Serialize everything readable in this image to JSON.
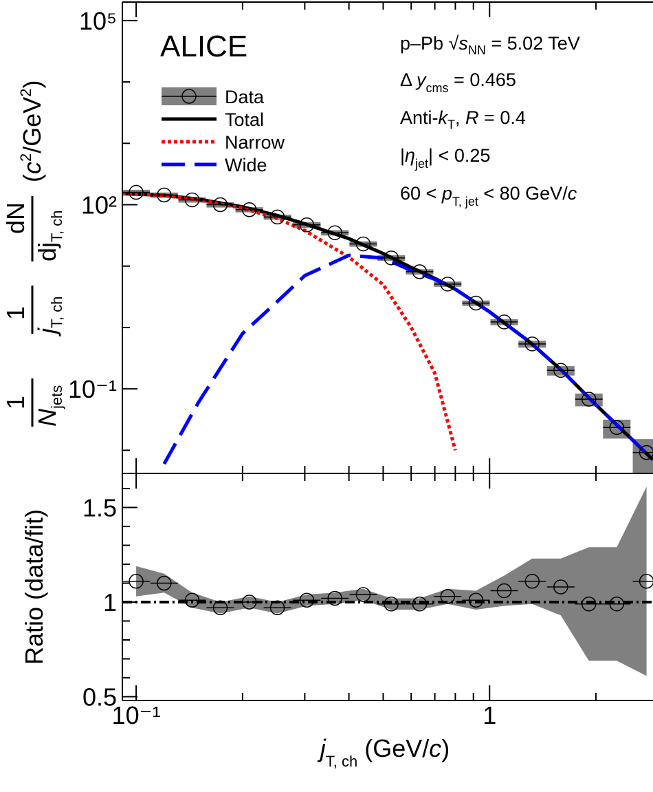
{
  "chart_data": [
    {
      "type": "scatter",
      "brand": "ALICE",
      "ylabel": [
        "1",
        "N",
        "jets",
        "1",
        "j",
        "T, ch",
        "dN",
        "dj",
        "T, ch",
        "(",
        "c",
        "2",
        "/GeV",
        "2",
        ")"
      ],
      "annotations": [
        [
          "p–Pb ",
          "√",
          "s",
          "NN",
          " = 5.02 TeV"
        ],
        [
          "Δ ",
          "y",
          "cms",
          " = 0.465"
        ],
        [
          "Anti-",
          "k",
          "T",
          ", ",
          "R",
          " = 0.4"
        ],
        [
          "|",
          "η",
          "jet",
          "| < 0.25"
        ],
        [
          "60 < ",
          "p",
          "T, jet",
          " < 80 GeV/",
          "c"
        ]
      ],
      "log_x": true,
      "log_y": true,
      "xlim": [
        0.0914,
        2.9
      ],
      "ylim": [
        0.0042,
        200000
      ],
      "yticks": [
        {
          "value": 100000,
          "label": "10⁵"
        },
        {
          "value": 100,
          "label": "10²"
        },
        {
          "value": 0.1,
          "label": "10⁻¹"
        }
      ],
      "yminor": [
        10000,
        1000,
        10,
        1,
        0.01
      ],
      "series": [
        {
          "name": "Data",
          "color": "#808080",
          "x": [
            0.1,
            0.12,
            0.144,
            0.173,
            0.209,
            0.251,
            0.304,
            0.365,
            0.439,
            0.527,
            0.634,
            0.761,
            0.915,
            1.1,
            1.32,
            1.59,
            1.91,
            2.29,
            2.78
          ],
          "values": [
            159,
            144,
            120,
            100,
            83,
            63,
            47,
            35,
            23,
            13.6,
            8.1,
            5.1,
            2.5,
            1.23,
            0.54,
            0.2,
            0.068,
            0.0235,
            0.0092
          ],
          "syst": [
            16,
            14,
            12,
            10,
            8,
            6,
            5,
            3.5,
            2.3,
            1.4,
            0.8,
            0.5,
            0.25,
            0.14,
            0.07,
            0.035,
            0.016,
            0.008,
            0.006
          ]
        },
        {
          "name": "Total",
          "color": "#000000",
          "linestyle": "solid",
          "x": [
            0.0914,
            0.1,
            0.12,
            0.15,
            0.2,
            0.25,
            0.3,
            0.4,
            0.5,
            0.6,
            0.7,
            0.8,
            1,
            1.3,
            1.6,
            2,
            2.5,
            2.9
          ],
          "values": [
            151,
            149,
            142,
            123,
            92,
            67,
            49,
            28,
            16,
            9.5,
            6.3,
            4.2,
            1.8,
            0.58,
            0.2,
            0.055,
            0.016,
            0.007
          ]
        },
        {
          "name": "Narrow",
          "color": "#ff0000",
          "linestyle": "dotted",
          "x": [
            0.0914,
            0.1,
            0.12,
            0.15,
            0.2,
            0.25,
            0.3,
            0.4,
            0.5,
            0.6,
            0.7,
            0.8,
            1,
            1.3,
            1.6,
            2,
            2.5,
            2.9
          ],
          "values": [
            151,
            149,
            141,
            120,
            88,
            60,
            38,
            14,
            5,
            1,
            0.18,
            0.01,
            null,
            null,
            null,
            null,
            null,
            null
          ]
        },
        {
          "name": "Wide",
          "color": "#0000ff",
          "linestyle": "dashed",
          "x": [
            0.0914,
            0.1,
            0.12,
            0.15,
            0.2,
            0.25,
            0.3,
            0.4,
            0.5,
            0.6,
            0.7,
            0.8,
            1,
            1.3,
            1.6,
            2,
            2.5,
            2.9
          ],
          "values": [
            null,
            null,
            0.006,
            0.06,
            0.8,
            2.6,
            7,
            15,
            13.5,
            8.5,
            6.1,
            4.2,
            1.8,
            0.58,
            0.2,
            0.055,
            0.016,
            0.007
          ]
        }
      ]
    },
    {
      "type": "scatter",
      "ylabel": "Ratio (data/fit)",
      "xlabel": [
        "j",
        "T, ch",
        " (GeV/",
        "c",
        ")"
      ],
      "log_x": true,
      "xlim": [
        0.0914,
        2.9
      ],
      "xticks": [
        {
          "value": 0.1,
          "label": "10⁻¹"
        },
        1
      ],
      "xminor": [
        0.2,
        0.3,
        0.4,
        0.5,
        0.6,
        0.7,
        0.8,
        0.9,
        2
      ],
      "ylim": [
        0.48,
        1.68
      ],
      "yticks": [
        0.5,
        1,
        1.5
      ],
      "yminor": [
        0.6,
        0.7,
        0.8,
        0.9,
        1.1,
        1.2,
        1.3,
        1.4,
        1.6
      ],
      "reference": 1,
      "series": [
        {
          "name": "Data",
          "color": "#808080",
          "values": [
            1.11,
            1.1,
            1.01,
            0.97,
            1.0,
            0.97,
            1.01,
            1.02,
            1.04,
            0.99,
            0.99,
            1.03,
            1.01,
            1.06,
            1.11,
            1.08,
            0.99,
            0.99,
            1.11
          ],
          "syst": [
            0.08,
            0.05,
            0.04,
            0.03,
            0.03,
            0.03,
            0.03,
            0.03,
            0.03,
            0.03,
            0.03,
            0.04,
            0.05,
            0.08,
            0.12,
            0.15,
            0.3,
            0.3,
            0.5
          ]
        }
      ]
    }
  ]
}
